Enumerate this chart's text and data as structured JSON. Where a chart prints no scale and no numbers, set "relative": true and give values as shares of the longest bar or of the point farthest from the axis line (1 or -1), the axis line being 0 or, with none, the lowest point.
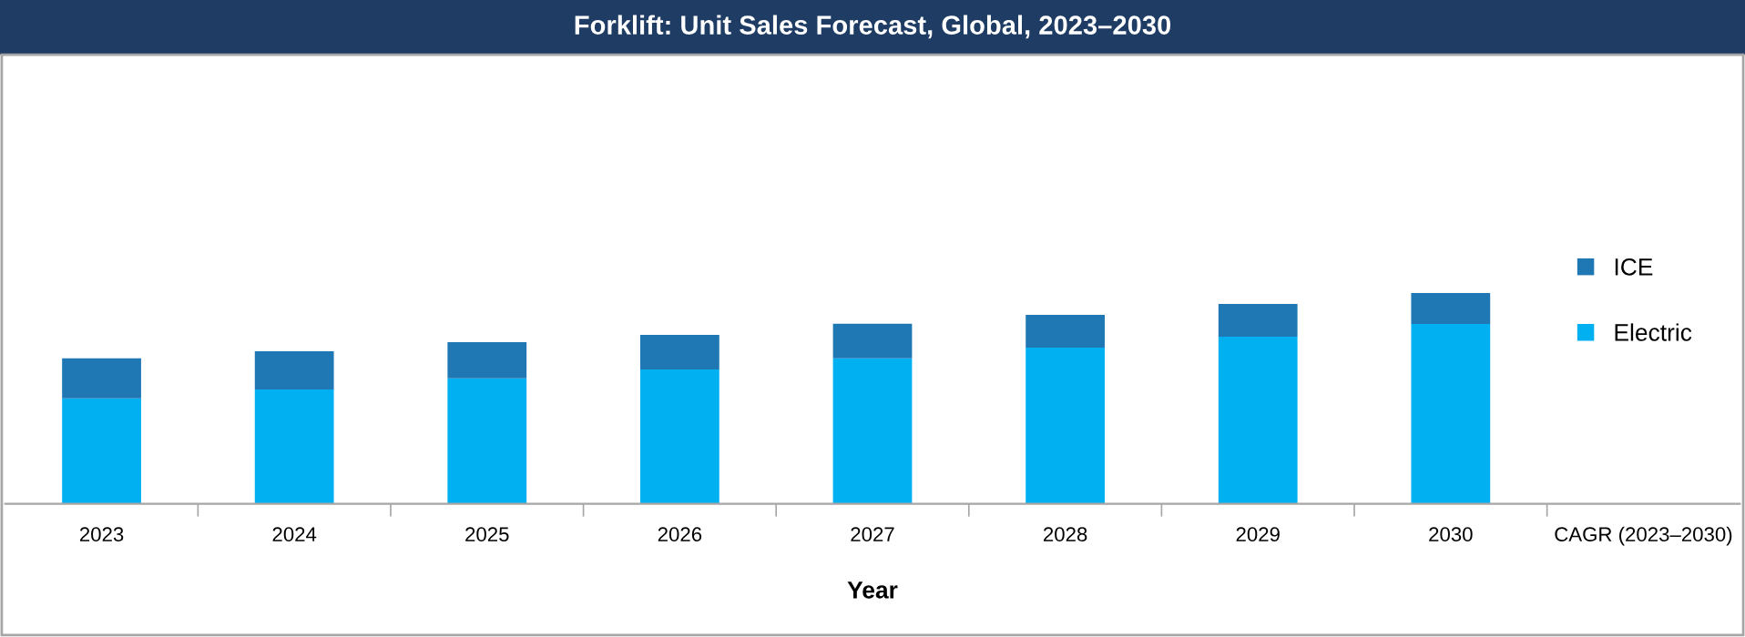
{
  "chart_data": {
    "type": "bar",
    "title": "Forklift: Unit Sales Forecast, Global, 2023–2030",
    "xlabel": "Year",
    "categories": [
      "2023",
      "2024",
      "2025",
      "2026",
      "2027",
      "2028",
      "2029",
      "2030",
      "CAGR (2023–2030)"
    ],
    "relative": true,
    "stacked": true,
    "legend": "right",
    "grid": false,
    "series": [
      {
        "name": "Electric",
        "color": "#00b0f0",
        "values": [
          0.5,
          0.543,
          0.595,
          0.638,
          0.69,
          0.741,
          0.793,
          0.853,
          null
        ]
      },
      {
        "name": "ICE",
        "color": "#1f77b4",
        "values": [
          0.19,
          0.181,
          0.172,
          0.164,
          0.164,
          0.155,
          0.155,
          0.147,
          null
        ]
      }
    ]
  }
}
